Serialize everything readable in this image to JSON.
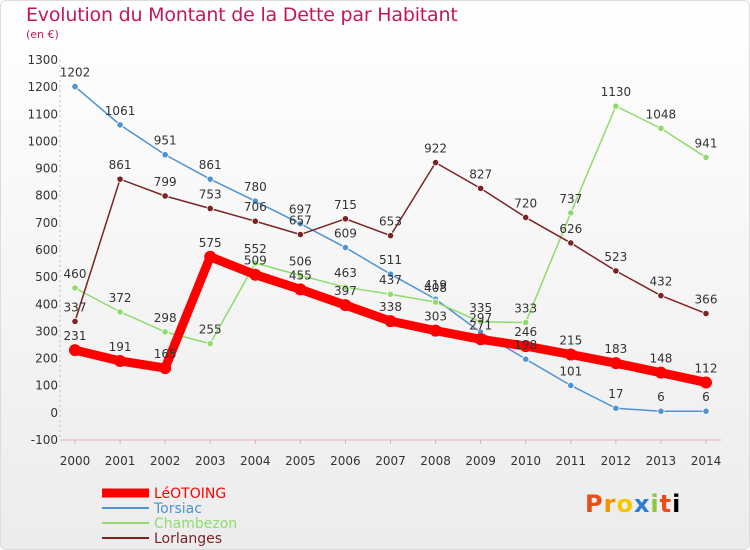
{
  "title": "Evolution du Montant de la Dette par Habitant",
  "subtitle": "(en €)",
  "logo": "Proxiti",
  "chart_data": {
    "type": "line",
    "title": "Evolution du Montant de la Dette par Habitant",
    "ylabel": "(en €)",
    "xlabel": "",
    "x": [
      2000,
      2001,
      2002,
      2003,
      2004,
      2005,
      2006,
      2007,
      2008,
      2009,
      2010,
      2011,
      2012,
      2013,
      2014
    ],
    "ylim": [
      -100,
      1300
    ],
    "yticks": [
      -100,
      0,
      100,
      200,
      300,
      400,
      500,
      600,
      700,
      800,
      900,
      1000,
      1100,
      1200,
      1300
    ],
    "grid": false,
    "legend_position": "bottom-left",
    "series": [
      {
        "name": "LéOTOING",
        "color": "#ff0000",
        "values": [
          231,
          191,
          165,
          575,
          509,
          455,
          397,
          338,
          303,
          271,
          246,
          215,
          183,
          148,
          112
        ]
      },
      {
        "name": "Torsiac",
        "color": "#4f93d1",
        "values": [
          1202,
          1061,
          951,
          861,
          780,
          697,
          609,
          511,
          419,
          297,
          198,
          101,
          17,
          6,
          6
        ]
      },
      {
        "name": "Chambezon",
        "color": "#8fdc6c",
        "values": [
          460,
          372,
          298,
          255,
          552,
          506,
          463,
          437,
          408,
          335,
          333,
          737,
          1130,
          1048,
          941
        ]
      },
      {
        "name": "Lorlanges",
        "color": "#7b2323",
        "values": [
          337,
          861,
          799,
          753,
          706,
          657,
          715,
          653,
          922,
          827,
          720,
          626,
          523,
          432,
          366
        ]
      }
    ]
  }
}
